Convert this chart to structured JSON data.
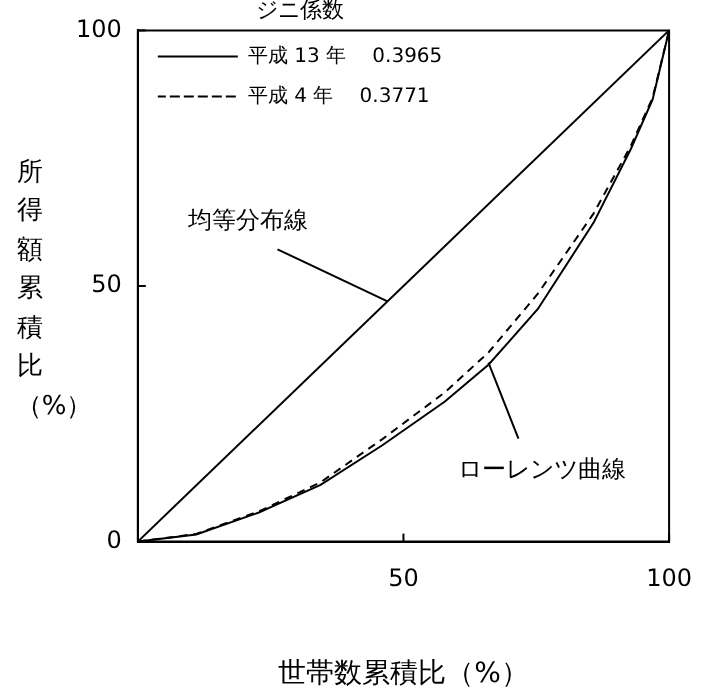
{
  "chart_data": {
    "type": "line",
    "xlabel": "世帯数累積比（%）",
    "ylabel": "所得額累積比（%）",
    "legend_title": "ジニ係数",
    "xlim": [
      0,
      100
    ],
    "ylim": [
      0,
      100
    ],
    "xticks": [
      50,
      100
    ],
    "yticks": [
      0,
      50,
      100
    ],
    "grid": false,
    "legend": "top left",
    "marker": "none",
    "series": [
      {
        "name": "平成 13 年　 0.3965",
        "color": "#000000",
        "line_style": "solid",
        "x": [
          0,
          11,
          22.8,
          34.4,
          46.1,
          57.8,
          66,
          75.3,
          85.8,
          92.8,
          96.9,
          100
        ],
        "values": [
          0,
          1.4,
          5.7,
          11.1,
          18.9,
          27.4,
          34.6,
          45.5,
          62.4,
          76.8,
          86.5,
          100
        ]
      },
      {
        "name": "平成 4 年　 0.3771",
        "color": "#000000",
        "line_style": "dashed",
        "x": [
          0,
          11,
          22.8,
          34.4,
          46.1,
          57.8,
          66,
          75.3,
          85.8,
          92.8,
          96.9,
          100
        ],
        "values": [
          0,
          1.5,
          5.9,
          11.6,
          20.1,
          29.2,
          37,
          48.5,
          64.2,
          77.4,
          86.8,
          100
        ]
      },
      {
        "color": "#000000",
        "line_style": "solid",
        "x": [
          0,
          100
        ],
        "values": [
          0,
          100
        ]
      }
    ],
    "annotations": [
      {
        "text": "均等分布線",
        "x": 47,
        "y": 47
      },
      {
        "text": "ローレンツ曲線",
        "x": 66,
        "y": 35
      }
    ]
  }
}
